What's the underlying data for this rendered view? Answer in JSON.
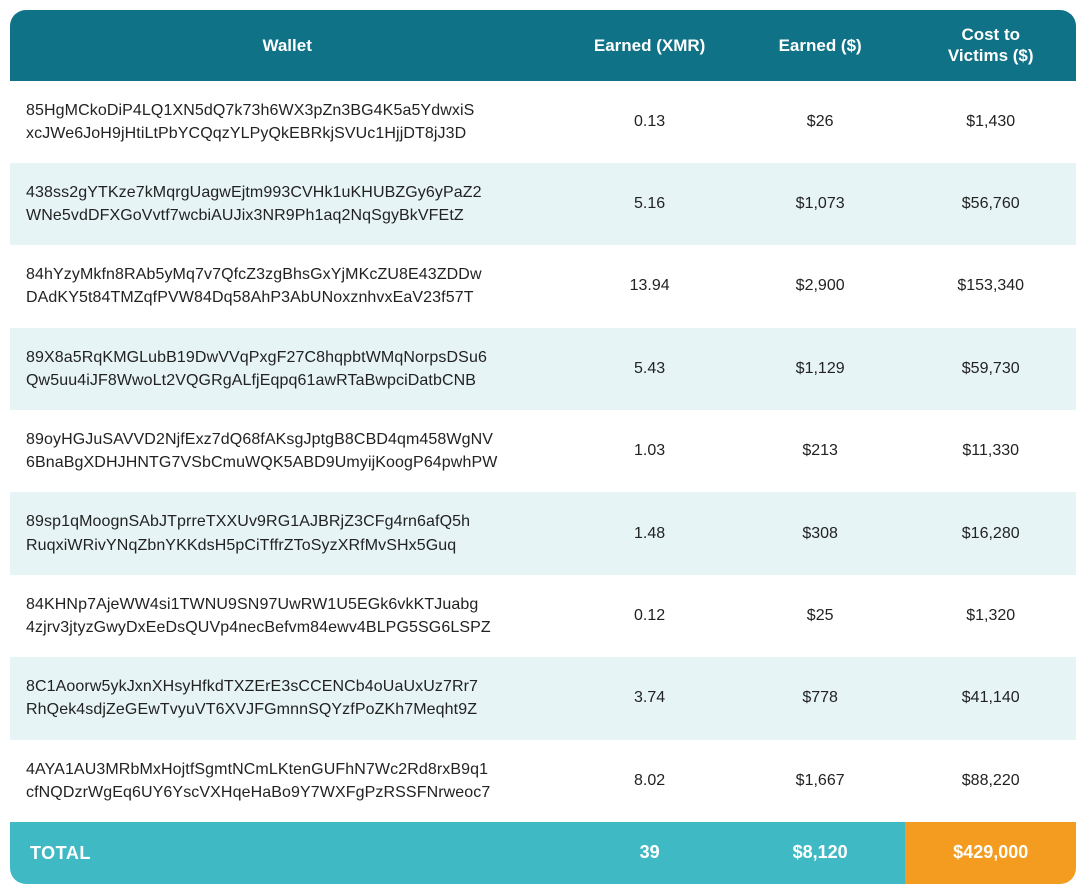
{
  "table": {
    "columns": [
      {
        "key": "wallet",
        "label": "Wallet",
        "align": "center"
      },
      {
        "key": "xmr",
        "label": "Earned (XMR)",
        "align": "center"
      },
      {
        "key": "usd",
        "label": "Earned ($)",
        "align": "center"
      },
      {
        "key": "cost",
        "label": "Cost to\nVictims ($)",
        "align": "center"
      }
    ],
    "header_bg": "#0f7286",
    "header_fg": "#ffffff",
    "row_bg_odd": "#ffffff",
    "row_bg_even": "#e7f4f6",
    "text_color": "#222222",
    "body_fontsize": 16,
    "header_fontsize": 17,
    "border_radius": 16,
    "rows": [
      {
        "wallet_l1": "85HgMCkoDiP4LQ1XN5dQ7k73h6WX3pZn3BG4K5a5YdwxiS",
        "wallet_l2": "xcJWe6JoH9jHtiLtPbYCQqzYLPyQkEBRkjSVUc1HjjDT8jJ3D",
        "xmr": "0.13",
        "usd": "$26",
        "cost": "$1,430"
      },
      {
        "wallet_l1": "438ss2gYTKze7kMqrgUagwEjtm993CVHk1uKHUBZGy6yPaZ2",
        "wallet_l2": "WNe5vdDFXGoVvtf7wcbiAUJix3NR9Ph1aq2NqSgyBkVFEtZ",
        "xmr": "5.16",
        "usd": "$1,073",
        "cost": "$56,760"
      },
      {
        "wallet_l1": "84hYzyMkfn8RAb5yMq7v7QfcZ3zgBhsGxYjMKcZU8E43ZDDw",
        "wallet_l2": "DAdKY5t84TMZqfPVW84Dq58AhP3AbUNoxznhvxEaV23f57T",
        "xmr": "13.94",
        "usd": "$2,900",
        "cost": "$153,340"
      },
      {
        "wallet_l1": "89X8a5RqKMGLubB19DwVVqPxgF27C8hqpbtWMqNorpsDSu6",
        "wallet_l2": "Qw5uu4iJF8WwoLt2VQGRgALfjEqpq61awRTaBwpciDatbCNB",
        "xmr": "5.43",
        "usd": "$1,129",
        "cost": "$59,730"
      },
      {
        "wallet_l1": "89oyHGJuSAVVD2NjfExz7dQ68fAKsgJptgB8CBD4qm458WgNV",
        "wallet_l2": "6BnaBgXDHJHNTG7VSbCmuWQK5ABD9UmyijKoogP64pwhPW",
        "xmr": "1.03",
        "usd": "$213",
        "cost": "$11,330"
      },
      {
        "wallet_l1": "89sp1qMoognSAbJTprreTXXUv9RG1AJBRjZ3CFg4rn6afQ5h",
        "wallet_l2": "RuqxiWRivYNqZbnYKKdsH5pCiTffrZToSyzXRfMvSHx5Guq",
        "xmr": "1.48",
        "usd": "$308",
        "cost": "$16,280"
      },
      {
        "wallet_l1": "84KHNp7AjeWW4si1TWNU9SN97UwRW1U5EGk6vkKTJuabg",
        "wallet_l2": "4zjrv3jtyzGwyDxEeDsQUVp4necBefvm84ewv4BLPG5SG6LSPZ",
        "xmr": "0.12",
        "usd": "$25",
        "cost": "$1,320"
      },
      {
        "wallet_l1": "8C1Aoorw5ykJxnXHsyHfkdTXZErE3sCCENCb4oUaUxUz7Rr7",
        "wallet_l2": "RhQek4sdjZeGEwTvyuVT6XVJFGmnnSQYzfPoZKh7Meqht9Z",
        "xmr": "3.74",
        "usd": "$778",
        "cost": "$41,140"
      },
      {
        "wallet_l1": "4AYA1AU3MRbMxHojtfSgmtNCmLKtenGUFhN7Wc2Rd8rxB9q1",
        "wallet_l2": "cfNQDzrWgEq6UY6YscVXHqeHaBo9Y7WXFgPzRSSFNrweoc7",
        "xmr": "8.02",
        "usd": "$1,667",
        "cost": "$88,220"
      }
    ],
    "total": {
      "label": "TOTAL",
      "xmr": "39",
      "usd": "$8,120",
      "cost": "$429,000",
      "bg_main": "#3fb9c4",
      "bg_highlight": "#f39c1f",
      "fg": "#ffffff",
      "fontsize": 18
    }
  }
}
